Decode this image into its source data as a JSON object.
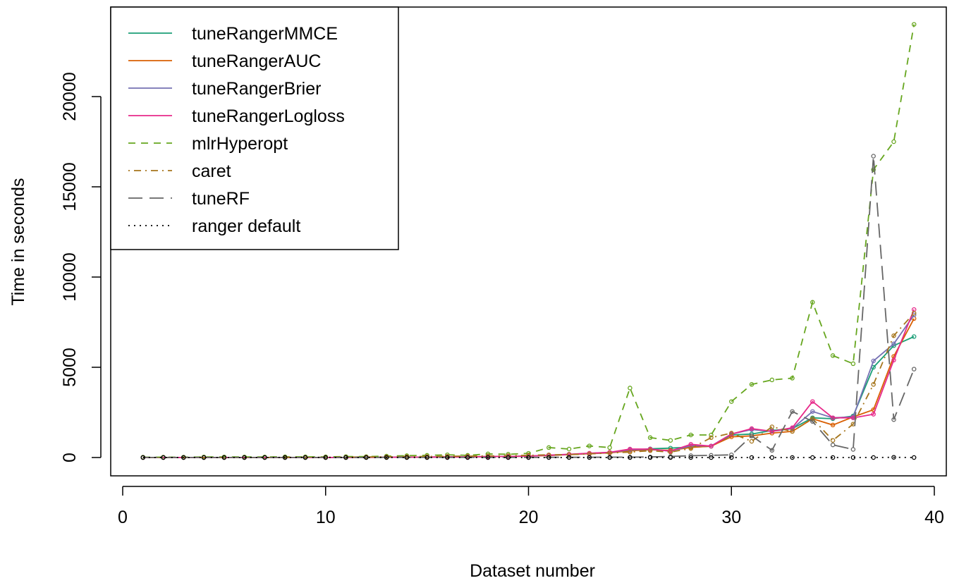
{
  "chart_data": {
    "type": "line",
    "title": "",
    "xlabel": "Dataset number",
    "ylabel": "Time in seconds",
    "xlim": [
      0,
      40
    ],
    "ylim": [
      0,
      24000
    ],
    "x_ticks": [
      "0",
      "10",
      "20",
      "30",
      "40"
    ],
    "y_ticks": [
      "0",
      "5000",
      "10000",
      "15000",
      "20000"
    ],
    "legend_position": "top-left",
    "grid": false,
    "x": [
      1,
      2,
      3,
      4,
      5,
      6,
      7,
      8,
      9,
      10,
      11,
      12,
      13,
      14,
      15,
      16,
      17,
      18,
      19,
      20,
      21,
      22,
      23,
      24,
      25,
      26,
      27,
      28,
      29,
      30,
      31,
      32,
      33,
      34,
      35,
      36,
      37,
      38,
      39
    ],
    "series": [
      {
        "name": "tuneRangerMMCE",
        "color": "#1b9e77",
        "dash": "solid",
        "values": [
          5,
          5,
          5,
          5,
          5,
          5,
          5,
          5,
          5,
          5,
          5,
          10,
          15,
          20,
          25,
          30,
          35,
          50,
          60,
          80,
          120,
          170,
          220,
          270,
          400,
          480,
          520,
          580,
          620,
          1250,
          1300,
          1500,
          1600,
          2200,
          2150,
          2300,
          5000,
          6200,
          6700
        ]
      },
      {
        "name": "tuneRangerAUC",
        "color": "#d95f02",
        "dash": "solid",
        "values": [
          5,
          5,
          5,
          5,
          5,
          5,
          5,
          5,
          5,
          5,
          5,
          10,
          15,
          20,
          25,
          30,
          35,
          50,
          60,
          80,
          110,
          160,
          210,
          260,
          370,
          430,
          400,
          560,
          630,
          1150,
          1200,
          1350,
          1450,
          2150,
          1800,
          2250,
          2650,
          5600,
          7700
        ]
      },
      {
        "name": "tuneRangerBrier",
        "color": "#7570b3",
        "dash": "solid",
        "values": [
          5,
          5,
          5,
          5,
          5,
          5,
          5,
          5,
          5,
          5,
          5,
          10,
          15,
          20,
          25,
          30,
          35,
          50,
          60,
          80,
          120,
          170,
          230,
          280,
          420,
          460,
          350,
          650,
          640,
          1300,
          1550,
          1450,
          1600,
          2550,
          2200,
          2250,
          5350,
          6300,
          7900
        ]
      },
      {
        "name": "tuneRangerLogloss",
        "color": "#e7298a",
        "dash": "solid",
        "values": [
          5,
          5,
          5,
          5,
          5,
          5,
          5,
          5,
          5,
          5,
          5,
          10,
          15,
          20,
          25,
          30,
          35,
          50,
          60,
          80,
          130,
          180,
          240,
          290,
          470,
          470,
          350,
          730,
          630,
          1300,
          1600,
          1450,
          1650,
          3100,
          2200,
          2200,
          2400,
          5400,
          8200
        ]
      },
      {
        "name": "mlrHyperopt",
        "color": "#66a61e",
        "dash": "dashed",
        "values": [
          20,
          20,
          20,
          30,
          30,
          30,
          30,
          40,
          40,
          40,
          50,
          50,
          80,
          100,
          120,
          150,
          120,
          200,
          180,
          230,
          550,
          470,
          640,
          550,
          3850,
          1100,
          950,
          1250,
          1250,
          3100,
          4050,
          4300,
          4400,
          8600,
          5650,
          5200,
          15950,
          17500,
          24000
        ]
      },
      {
        "name": "caret",
        "color": "#a6761d",
        "dash": "dotdash",
        "values": [
          5,
          5,
          5,
          5,
          5,
          5,
          5,
          10,
          10,
          15,
          20,
          30,
          40,
          50,
          60,
          70,
          80,
          90,
          100,
          120,
          150,
          160,
          200,
          250,
          300,
          380,
          300,
          500,
          1100,
          1350,
          900,
          1700,
          1450,
          2150,
          950,
          1850,
          4050,
          6750,
          8000
        ]
      },
      {
        "name": "tuneRF",
        "color": "#666666",
        "dash": "longdash",
        "values": [
          2,
          2,
          2,
          2,
          2,
          2,
          2,
          2,
          2,
          2,
          2,
          5,
          5,
          5,
          5,
          5,
          5,
          5,
          5,
          5,
          10,
          10,
          10,
          20,
          20,
          30,
          60,
          100,
          120,
          150,
          1200,
          400,
          2550,
          2000,
          700,
          450,
          16700,
          2100,
          4900
        ]
      },
      {
        "name": "ranger default",
        "color": "#000000",
        "dash": "dotted",
        "values": [
          1,
          1,
          1,
          1,
          1,
          1,
          1,
          1,
          1,
          1,
          1,
          1,
          1,
          1,
          1,
          1,
          1,
          1,
          1,
          1,
          1,
          1,
          1,
          1,
          1,
          1,
          1,
          1,
          1,
          1,
          1,
          1,
          1,
          1,
          1,
          1,
          1,
          10,
          1
        ]
      }
    ]
  }
}
